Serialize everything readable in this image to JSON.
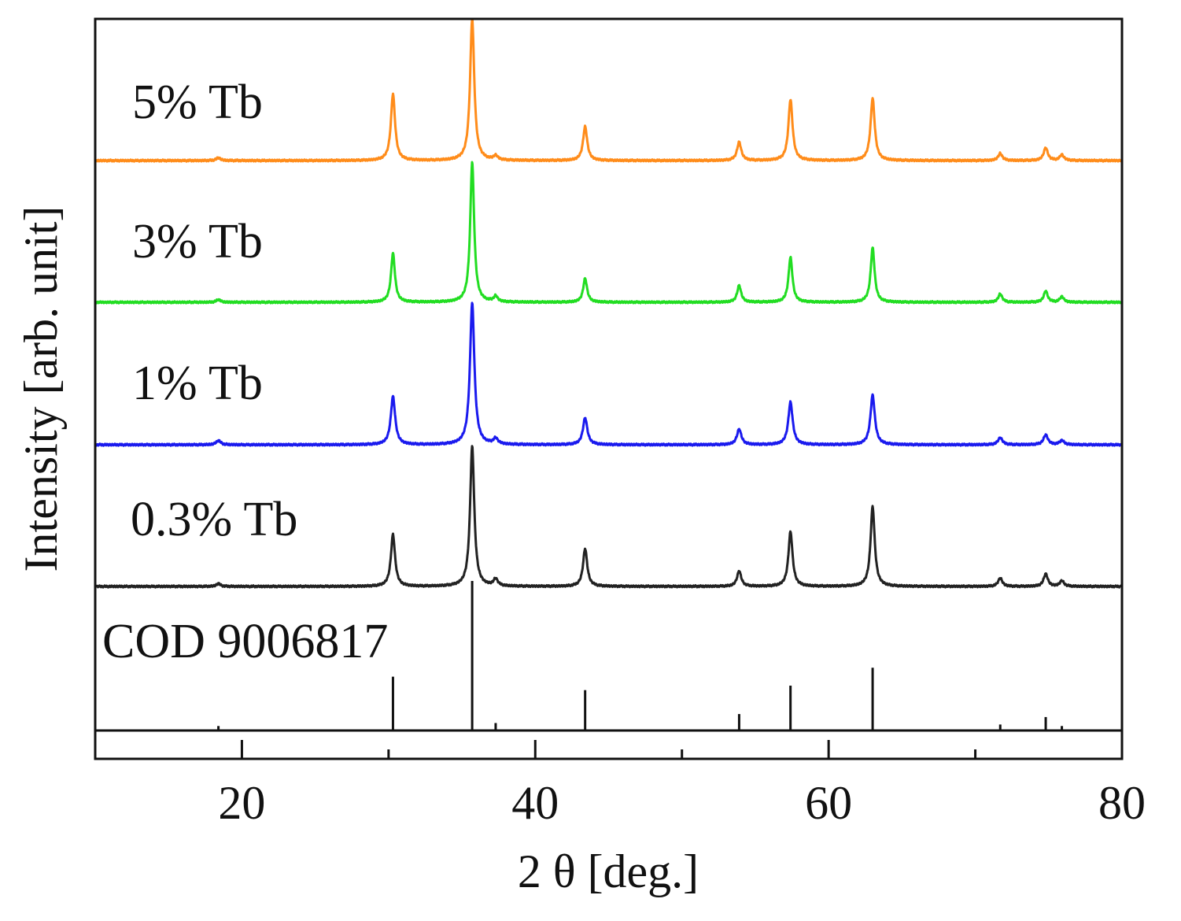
{
  "chart_data": {
    "type": "line",
    "title": "",
    "xlabel": "2 θ [deg.]",
    "ylabel": "Intensity [arb. unit]",
    "xlim": [
      10,
      80
    ],
    "xticks": [
      20,
      40,
      60,
      80
    ],
    "x_minor_ticks": [
      30,
      50,
      70
    ],
    "grid": false,
    "series": [
      {
        "name": "5% Tb",
        "color": "#ff8c1a",
        "peaks": [
          {
            "x": 18.4,
            "h": 0.02
          },
          {
            "x": 30.3,
            "h": 0.47
          },
          {
            "x": 35.7,
            "h": 1.0
          },
          {
            "x": 37.3,
            "h": 0.03
          },
          {
            "x": 43.4,
            "h": 0.24
          },
          {
            "x": 53.9,
            "h": 0.13
          },
          {
            "x": 57.4,
            "h": 0.43
          },
          {
            "x": 63.0,
            "h": 0.44
          },
          {
            "x": 71.7,
            "h": 0.05
          },
          {
            "x": 74.8,
            "h": 0.09
          },
          {
            "x": 75.9,
            "h": 0.04
          }
        ]
      },
      {
        "name": "3% Tb",
        "color": "#22dd22",
        "peaks": [
          {
            "x": 18.4,
            "h": 0.02
          },
          {
            "x": 30.3,
            "h": 0.35
          },
          {
            "x": 35.7,
            "h": 1.0
          },
          {
            "x": 37.3,
            "h": 0.04
          },
          {
            "x": 43.4,
            "h": 0.17
          },
          {
            "x": 53.9,
            "h": 0.12
          },
          {
            "x": 57.4,
            "h": 0.32
          },
          {
            "x": 63.0,
            "h": 0.39
          },
          {
            "x": 71.7,
            "h": 0.06
          },
          {
            "x": 74.8,
            "h": 0.08
          },
          {
            "x": 75.9,
            "h": 0.04
          }
        ]
      },
      {
        "name": "1% Tb",
        "color": "#1a1aee",
        "peaks": [
          {
            "x": 18.4,
            "h": 0.03
          },
          {
            "x": 30.3,
            "h": 0.34
          },
          {
            "x": 35.7,
            "h": 1.0
          },
          {
            "x": 37.3,
            "h": 0.04
          },
          {
            "x": 43.4,
            "h": 0.19
          },
          {
            "x": 53.9,
            "h": 0.11
          },
          {
            "x": 57.4,
            "h": 0.3
          },
          {
            "x": 63.0,
            "h": 0.35
          },
          {
            "x": 71.7,
            "h": 0.05
          },
          {
            "x": 74.8,
            "h": 0.07
          },
          {
            "x": 75.9,
            "h": 0.03
          }
        ]
      },
      {
        "name": "0.3% Tb",
        "color": "#222222",
        "peaks": [
          {
            "x": 18.4,
            "h": 0.02
          },
          {
            "x": 30.3,
            "h": 0.37
          },
          {
            "x": 35.7,
            "h": 1.0
          },
          {
            "x": 37.3,
            "h": 0.05
          },
          {
            "x": 43.4,
            "h": 0.27
          },
          {
            "x": 53.9,
            "h": 0.11
          },
          {
            "x": 57.4,
            "h": 0.39
          },
          {
            "x": 63.0,
            "h": 0.57
          },
          {
            "x": 71.7,
            "h": 0.06
          },
          {
            "x": 74.8,
            "h": 0.09
          },
          {
            "x": 75.9,
            "h": 0.04
          }
        ]
      }
    ],
    "reference": {
      "name": "COD 9006817",
      "color": "#111111",
      "lines": [
        {
          "x": 18.4,
          "h": 0.03
        },
        {
          "x": 30.3,
          "h": 0.36
        },
        {
          "x": 35.7,
          "h": 1.0
        },
        {
          "x": 37.3,
          "h": 0.05
        },
        {
          "x": 43.4,
          "h": 0.27
        },
        {
          "x": 53.9,
          "h": 0.11
        },
        {
          "x": 57.4,
          "h": 0.3
        },
        {
          "x": 63.0,
          "h": 0.42
        },
        {
          "x": 71.7,
          "h": 0.04
        },
        {
          "x": 74.8,
          "h": 0.09
        },
        {
          "x": 75.9,
          "h": 0.03
        }
      ]
    }
  }
}
